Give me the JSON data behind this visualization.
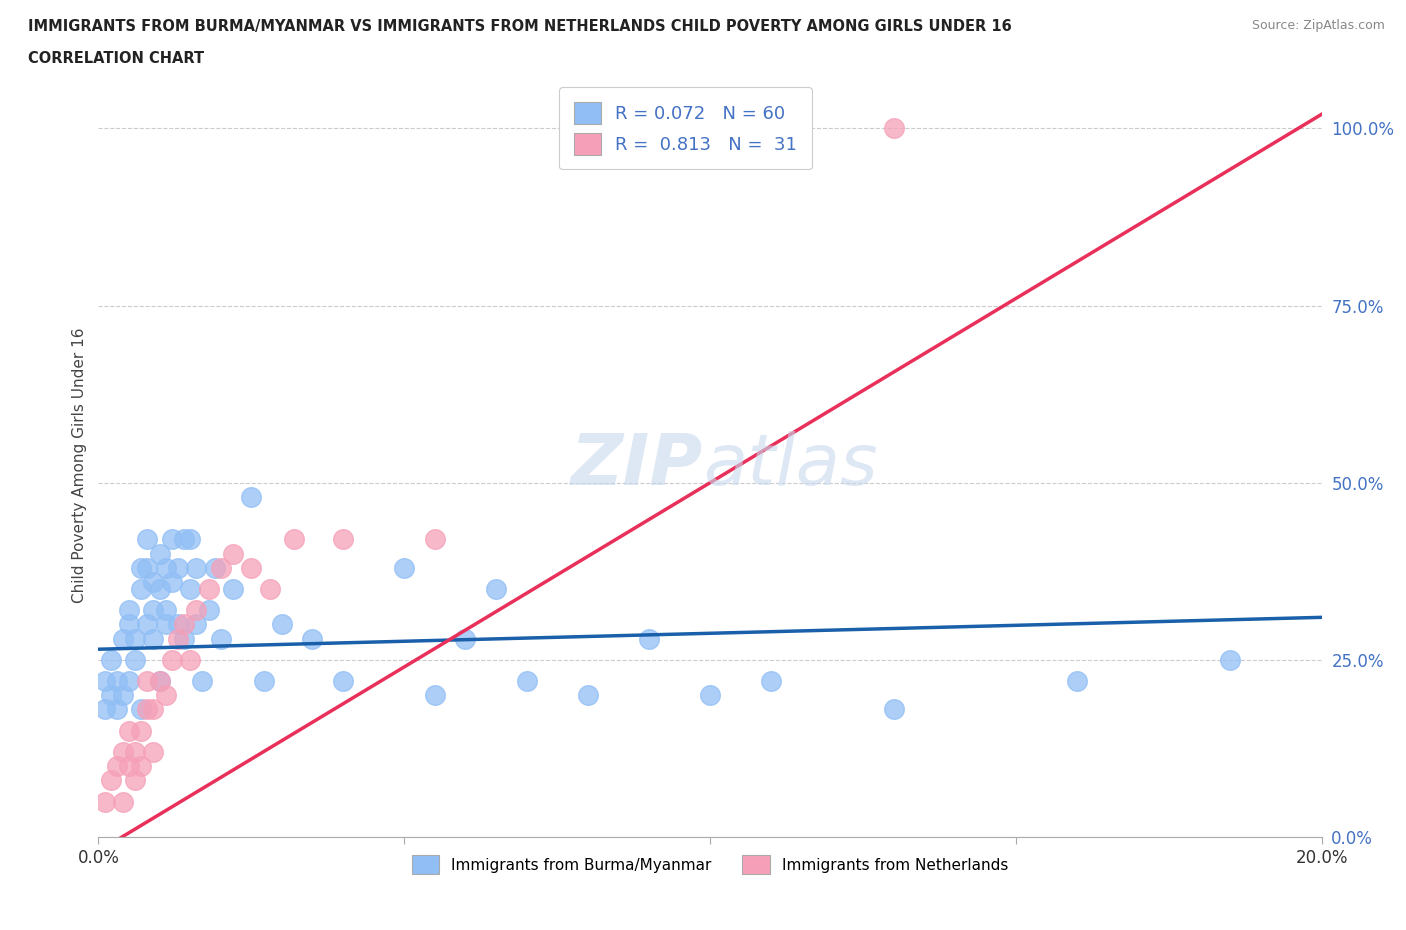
{
  "title_line1": "IMMIGRANTS FROM BURMA/MYANMAR VS IMMIGRANTS FROM NETHERLANDS CHILD POVERTY AMONG GIRLS UNDER 16",
  "title_line2": "CORRELATION CHART",
  "source_text": "Source: ZipAtlas.com",
  "ylabel": "Child Poverty Among Girls Under 16",
  "xlim": [
    0.0,
    0.2
  ],
  "ylim": [
    0.0,
    1.05
  ],
  "yticks": [
    0.0,
    0.25,
    0.5,
    0.75,
    1.0
  ],
  "ytick_labels": [
    "0.0%",
    "25.0%",
    "50.0%",
    "75.0%",
    "100.0%"
  ],
  "xtick_labels": [
    "0.0%",
    "",
    "",
    "",
    "20.0%"
  ],
  "r_burma": 0.072,
  "n_burma": 60,
  "r_netherlands": 0.813,
  "n_netherlands": 31,
  "color_burma": "#90bef5",
  "color_netherlands": "#f5a0b8",
  "trend_color_burma": "#1a5faa",
  "trend_color_netherlands": "#e8305a",
  "watermark_zip": "ZIP",
  "watermark_atlas": "atlas",
  "legend_burma": "Immigrants from Burma/Myanmar",
  "legend_netherlands": "Immigrants from Netherlands",
  "burma_trend_x": [
    0.0,
    0.2
  ],
  "burma_trend_y": [
    0.265,
    0.31
  ],
  "netherlands_trend_x": [
    0.0,
    0.2
  ],
  "netherlands_trend_y": [
    -0.02,
    1.02
  ],
  "burma_x": [
    0.001,
    0.001,
    0.002,
    0.002,
    0.003,
    0.003,
    0.004,
    0.004,
    0.005,
    0.005,
    0.005,
    0.006,
    0.006,
    0.007,
    0.007,
    0.007,
    0.008,
    0.008,
    0.008,
    0.009,
    0.009,
    0.009,
    0.01,
    0.01,
    0.01,
    0.011,
    0.011,
    0.011,
    0.012,
    0.012,
    0.013,
    0.013,
    0.014,
    0.014,
    0.015,
    0.015,
    0.016,
    0.016,
    0.017,
    0.018,
    0.019,
    0.02,
    0.022,
    0.025,
    0.027,
    0.03,
    0.035,
    0.04,
    0.05,
    0.055,
    0.06,
    0.065,
    0.07,
    0.08,
    0.09,
    0.1,
    0.11,
    0.13,
    0.16,
    0.185
  ],
  "burma_y": [
    0.18,
    0.22,
    0.2,
    0.25,
    0.18,
    0.22,
    0.2,
    0.28,
    0.22,
    0.3,
    0.32,
    0.25,
    0.28,
    0.35,
    0.38,
    0.18,
    0.3,
    0.38,
    0.42,
    0.28,
    0.32,
    0.36,
    0.35,
    0.4,
    0.22,
    0.3,
    0.38,
    0.32,
    0.36,
    0.42,
    0.3,
    0.38,
    0.42,
    0.28,
    0.35,
    0.42,
    0.3,
    0.38,
    0.22,
    0.32,
    0.38,
    0.28,
    0.35,
    0.48,
    0.22,
    0.3,
    0.28,
    0.22,
    0.38,
    0.2,
    0.28,
    0.35,
    0.22,
    0.2,
    0.28,
    0.2,
    0.22,
    0.18,
    0.22,
    0.25
  ],
  "netherlands_x": [
    0.001,
    0.002,
    0.003,
    0.004,
    0.004,
    0.005,
    0.005,
    0.006,
    0.006,
    0.007,
    0.007,
    0.008,
    0.008,
    0.009,
    0.009,
    0.01,
    0.011,
    0.012,
    0.013,
    0.014,
    0.015,
    0.016,
    0.018,
    0.02,
    0.022,
    0.025,
    0.028,
    0.032,
    0.04,
    0.055,
    0.13
  ],
  "netherlands_y": [
    0.05,
    0.08,
    0.1,
    0.05,
    0.12,
    0.1,
    0.15,
    0.12,
    0.08,
    0.15,
    0.1,
    0.18,
    0.22,
    0.18,
    0.12,
    0.22,
    0.2,
    0.25,
    0.28,
    0.3,
    0.25,
    0.32,
    0.35,
    0.38,
    0.4,
    0.38,
    0.35,
    0.42,
    0.42,
    0.42,
    1.0
  ]
}
